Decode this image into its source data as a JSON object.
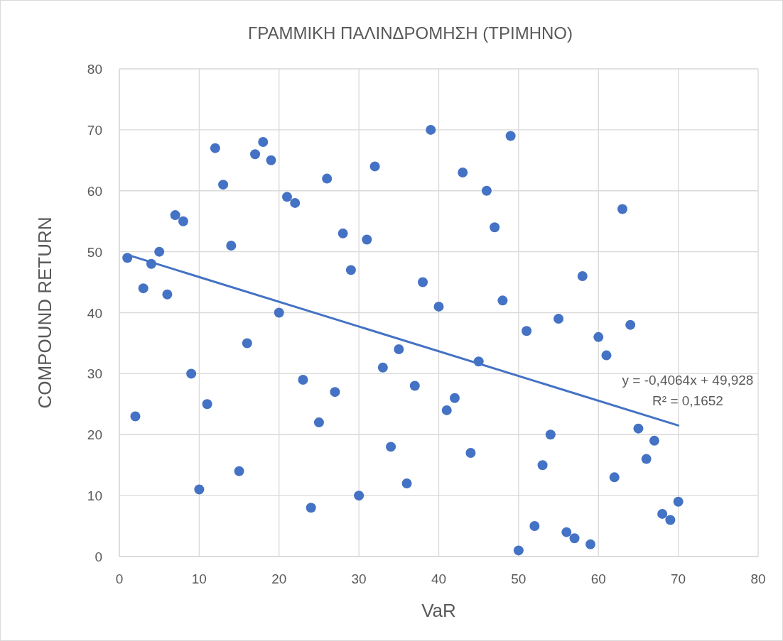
{
  "chart_data": {
    "type": "scatter",
    "title": "ΓΡΑΜΜΙΚΗ ΠΑΛΙΝΔΡΟΜΗΣΗ (ΤΡΙΜΗΝΟ)",
    "xlabel": "VaR",
    "ylabel": "COMPOUND RETURN",
    "x": [
      1,
      2,
      3,
      4,
      5,
      6,
      7,
      8,
      9,
      10,
      11,
      12,
      13,
      14,
      15,
      16,
      17,
      18,
      19,
      20,
      21,
      22,
      23,
      24,
      25,
      26,
      27,
      28,
      29,
      30,
      31,
      32,
      33,
      34,
      35,
      36,
      37,
      38,
      39,
      40,
      41,
      42,
      43,
      44,
      45,
      46,
      47,
      48,
      49,
      50,
      51,
      52,
      53,
      54,
      55,
      56,
      57,
      58,
      59,
      60,
      61,
      62,
      63,
      64,
      65,
      66,
      67,
      68,
      69,
      70
    ],
    "series": [
      {
        "color": "#4472c4",
        "marker": "circle",
        "values": [
          49,
          23,
          44,
          48,
          50,
          43,
          56,
          55,
          30,
          11,
          25,
          67,
          61,
          51,
          14,
          35,
          66,
          68,
          65,
          40,
          59,
          58,
          29,
          8,
          22,
          62,
          27,
          53,
          47,
          10,
          52,
          64,
          31,
          18,
          34,
          12,
          28,
          45,
          70,
          41,
          24,
          26,
          63,
          17,
          32,
          60,
          54,
          42,
          69,
          1,
          37,
          5,
          15,
          20,
          39,
          4,
          3,
          46,
          2,
          36,
          33,
          13,
          57,
          38,
          21,
          16,
          19,
          7,
          6,
          9
        ]
      },
      {
        "type": "line",
        "color": "#4472c4",
        "marker": "none",
        "line_style": "solid",
        "x": [
          1,
          70
        ],
        "values": [
          49.5,
          21.5
        ]
      }
    ],
    "annotations": [
      "y = -0,4064x + 49,928",
      "R² = 0,1652"
    ],
    "xlim": [
      0,
      80
    ],
    "xticks": [
      0,
      10,
      20,
      30,
      40,
      50,
      60,
      70,
      80
    ],
    "ylim": [
      0,
      80
    ],
    "yticks": [
      0,
      10,
      20,
      30,
      40,
      50,
      60,
      70,
      80
    ],
    "grid": true
  }
}
